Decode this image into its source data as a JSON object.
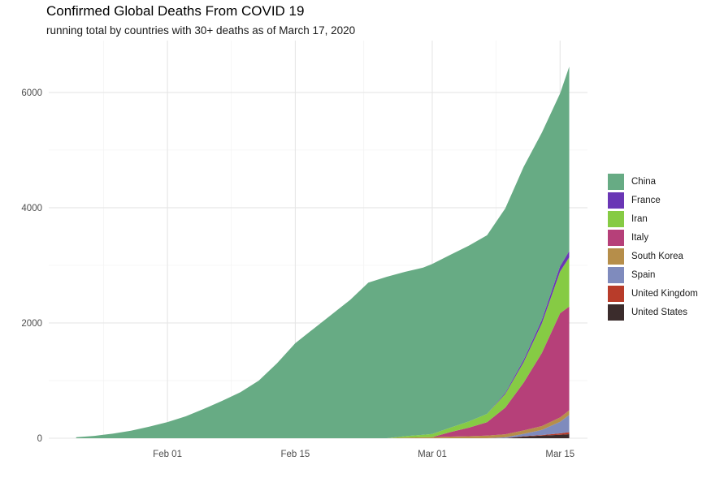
{
  "title": "Confirmed Global Deaths From COVID 19",
  "subtitle": "running total by countries with 30+ deaths as of March 17, 2020",
  "chart_data": {
    "type": "area",
    "stacked": true,
    "x_unit": "date",
    "x": [
      "2020-01-22",
      "2020-01-24",
      "2020-01-26",
      "2020-01-28",
      "2020-01-30",
      "2020-02-01",
      "2020-02-03",
      "2020-02-05",
      "2020-02-07",
      "2020-02-09",
      "2020-02-11",
      "2020-02-13",
      "2020-02-15",
      "2020-02-17",
      "2020-02-19",
      "2020-02-21",
      "2020-02-23",
      "2020-02-25",
      "2020-02-27",
      "2020-02-29",
      "2020-03-01",
      "2020-03-03",
      "2020-03-05",
      "2020-03-07",
      "2020-03-09",
      "2020-03-11",
      "2020-03-13",
      "2020-03-15",
      "2020-03-16"
    ],
    "series": [
      {
        "name": "United States",
        "color": "#3b2c2c",
        "values": [
          0,
          0,
          0,
          0,
          0,
          0,
          0,
          0,
          0,
          0,
          0,
          0,
          0,
          0,
          0,
          0,
          0,
          0,
          0,
          0,
          0,
          0,
          0,
          0,
          0,
          30,
          45,
          60,
          70
        ]
      },
      {
        "name": "United Kingdom",
        "color": "#b83c2a",
        "values": [
          0,
          0,
          0,
          0,
          0,
          0,
          0,
          0,
          0,
          0,
          0,
          0,
          0,
          0,
          0,
          0,
          0,
          0,
          0,
          0,
          0,
          0,
          0,
          0,
          0,
          5,
          10,
          25,
          35
        ]
      },
      {
        "name": "Spain",
        "color": "#7f8bbd",
        "values": [
          0,
          0,
          0,
          0,
          0,
          0,
          0,
          0,
          0,
          0,
          0,
          0,
          0,
          0,
          0,
          0,
          0,
          0,
          0,
          0,
          0,
          0,
          0,
          0,
          15,
          40,
          90,
          200,
          300
        ]
      },
      {
        "name": "South Korea",
        "color": "#b68e4a",
        "values": [
          0,
          0,
          0,
          0,
          0,
          0,
          0,
          0,
          0,
          0,
          0,
          0,
          0,
          0,
          0,
          0,
          0,
          0,
          10,
          17,
          20,
          28,
          35,
          45,
          54,
          60,
          67,
          75,
          80
        ]
      },
      {
        "name": "Italy",
        "color": "#b64079",
        "values": [
          0,
          0,
          0,
          0,
          0,
          0,
          0,
          0,
          0,
          0,
          0,
          0,
          0,
          0,
          0,
          0,
          0,
          0,
          0,
          0,
          0,
          79,
          148,
          233,
          463,
          827,
          1266,
          1809,
          1800
        ]
      },
      {
        "name": "Iran",
        "color": "#86cb44",
        "values": [
          0,
          0,
          0,
          0,
          0,
          0,
          0,
          0,
          0,
          0,
          0,
          0,
          0,
          0,
          0,
          0,
          0,
          0,
          26,
          43,
          54,
          77,
          107,
          145,
          237,
          354,
          514,
          724,
          853
        ]
      },
      {
        "name": "France",
        "color": "#6a36b5",
        "values": [
          0,
          0,
          0,
          0,
          0,
          0,
          0,
          0,
          0,
          0,
          0,
          0,
          0,
          0,
          0,
          0,
          0,
          0,
          0,
          0,
          0,
          0,
          0,
          0,
          20,
          40,
          60,
          90,
          110
        ]
      },
      {
        "name": "China",
        "color": "#67ab84",
        "values": [
          17,
          40,
          80,
          130,
          200,
          280,
          380,
          510,
          650,
          800,
          1000,
          1300,
          1650,
          1900,
          2150,
          2400,
          2700,
          2800,
          2850,
          2900,
          2950,
          3000,
          3050,
          3100,
          3200,
          3350,
          3250,
          3000,
          3200
        ]
      }
    ],
    "x_ticks": [
      "Feb 01",
      "Feb 15",
      "Mar 01",
      "Mar 15"
    ],
    "y_ticks": [
      0,
      2000,
      4000,
      6000
    ],
    "ylim": [
      0,
      6900
    ],
    "xlim": [
      "2020-01-19",
      "2020-03-18"
    ],
    "grid": true,
    "legend_position": "right",
    "legend_order": [
      "China",
      "France",
      "Iran",
      "Italy",
      "South Korea",
      "Spain",
      "United Kingdom",
      "United States"
    ]
  }
}
